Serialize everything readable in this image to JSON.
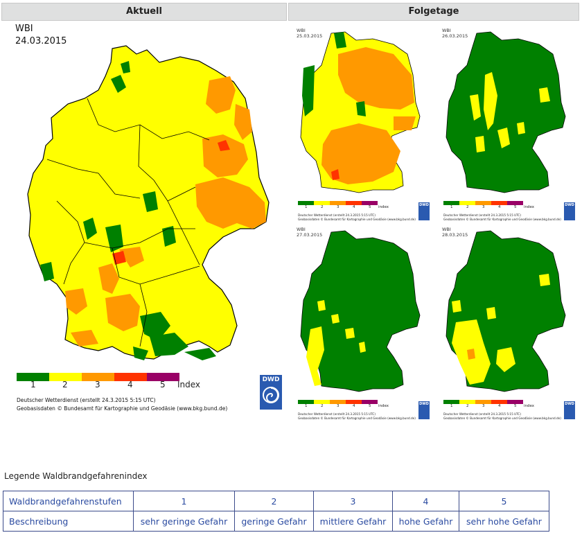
{
  "header": {
    "left": "Aktuell",
    "right": "Folgetage"
  },
  "main_map": {
    "title": "WBI",
    "date": "24.03.2015",
    "scale_labels": [
      "1",
      "2",
      "3",
      "4",
      "5"
    ],
    "scale_unit": "Index",
    "credit_line1": "Deutscher Wetterdienst (erstellt 24.3.2015 5:15 UTC)",
    "credit_line2": "Geobasisdaten © Bundesamt für Kartographie und Geodäsie (www.bkg.bund.de)",
    "logo_text": "DWD"
  },
  "colors": [
    "#008000",
    "#ffff00",
    "#ff9900",
    "#ff3300",
    "#990066"
  ],
  "forecast_maps": [
    {
      "title": "WBI",
      "date": "25.03.2015",
      "dominant_level": 3
    },
    {
      "title": "WBI",
      "date": "26.03.2015",
      "dominant_level": 1
    },
    {
      "title": "WBI",
      "date": "27.03.2015",
      "dominant_level": 1
    },
    {
      "title": "WBI",
      "date": "28.03.2015",
      "dominant_level": 1
    }
  ],
  "mini_credit_line1": "Deutscher Wetterdienst (erstellt 24.3.2015 5:15 UTC)",
  "mini_credit_line2": "Geobasisdaten © Bundesamt für Kartographie und Geodäsie (www.bkg.bund.de)",
  "mini_scale_unit": "index",
  "legend": {
    "title": "Legende Waldbrandgefahrenindex",
    "row1_header": "Waldbrandgefahrenstufen",
    "row2_header": "Beschreibung",
    "levels": [
      "1",
      "2",
      "3",
      "4",
      "5"
    ],
    "descriptions": [
      "sehr geringe Gefahr",
      "geringe Gefahr",
      "mittlere Gefahr",
      "hohe Gefahr",
      "sehr hohe Gefahr"
    ]
  }
}
